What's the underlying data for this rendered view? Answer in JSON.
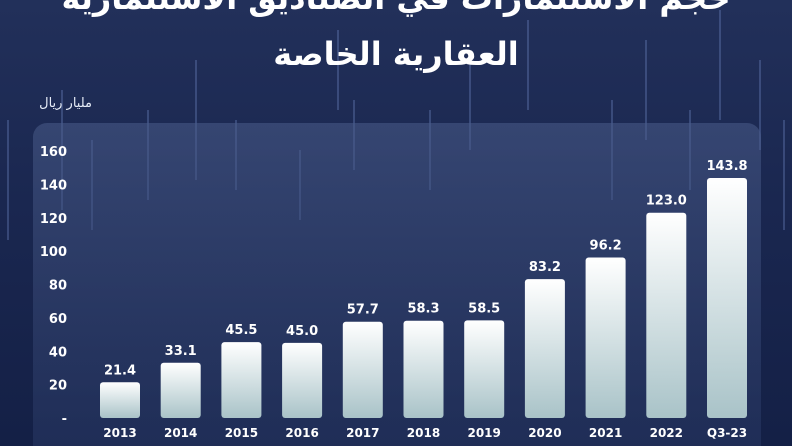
{
  "header": {
    "title_line1": "حجم الاستثمارات في الصناديق الاستثمارية",
    "title_line2": "العقارية الخاصة"
  },
  "chart_data": {
    "type": "bar",
    "title": "حجم الاستثمارات في الصناديق الاستثمارية العقارية الخاصة",
    "unit_label": "مليار ريال",
    "categories": [
      "2013",
      "2014",
      "2015",
      "2016",
      "2017",
      "2018",
      "2019",
      "2020",
      "2021",
      "2022",
      "Q3-23"
    ],
    "values": [
      21.4,
      33.1,
      45.5,
      45.0,
      57.7,
      58.3,
      58.5,
      83.2,
      96.2,
      123.0,
      143.8
    ],
    "value_labels": [
      "21.4",
      "33.1",
      "45.5",
      "45.0",
      "57.7",
      "58.3",
      "58.5",
      "83.2",
      "96.2",
      "123.0",
      "143.8"
    ],
    "yticks": [
      {
        "value": 0,
        "label": "-"
      },
      {
        "value": 20,
        "label": "20"
      },
      {
        "value": 40,
        "label": "40"
      },
      {
        "value": 60,
        "label": "60"
      },
      {
        "value": 80,
        "label": "80"
      },
      {
        "value": 100,
        "label": "100"
      },
      {
        "value": 120,
        "label": "120"
      },
      {
        "value": 140,
        "label": "140"
      },
      {
        "value": 160,
        "label": "160"
      }
    ],
    "ylim": [
      0,
      160
    ],
    "grid": false,
    "colors": {
      "bar_top": "#ffffff",
      "bar_bottom": "#a9c3c8",
      "text": "#ffffff"
    }
  }
}
